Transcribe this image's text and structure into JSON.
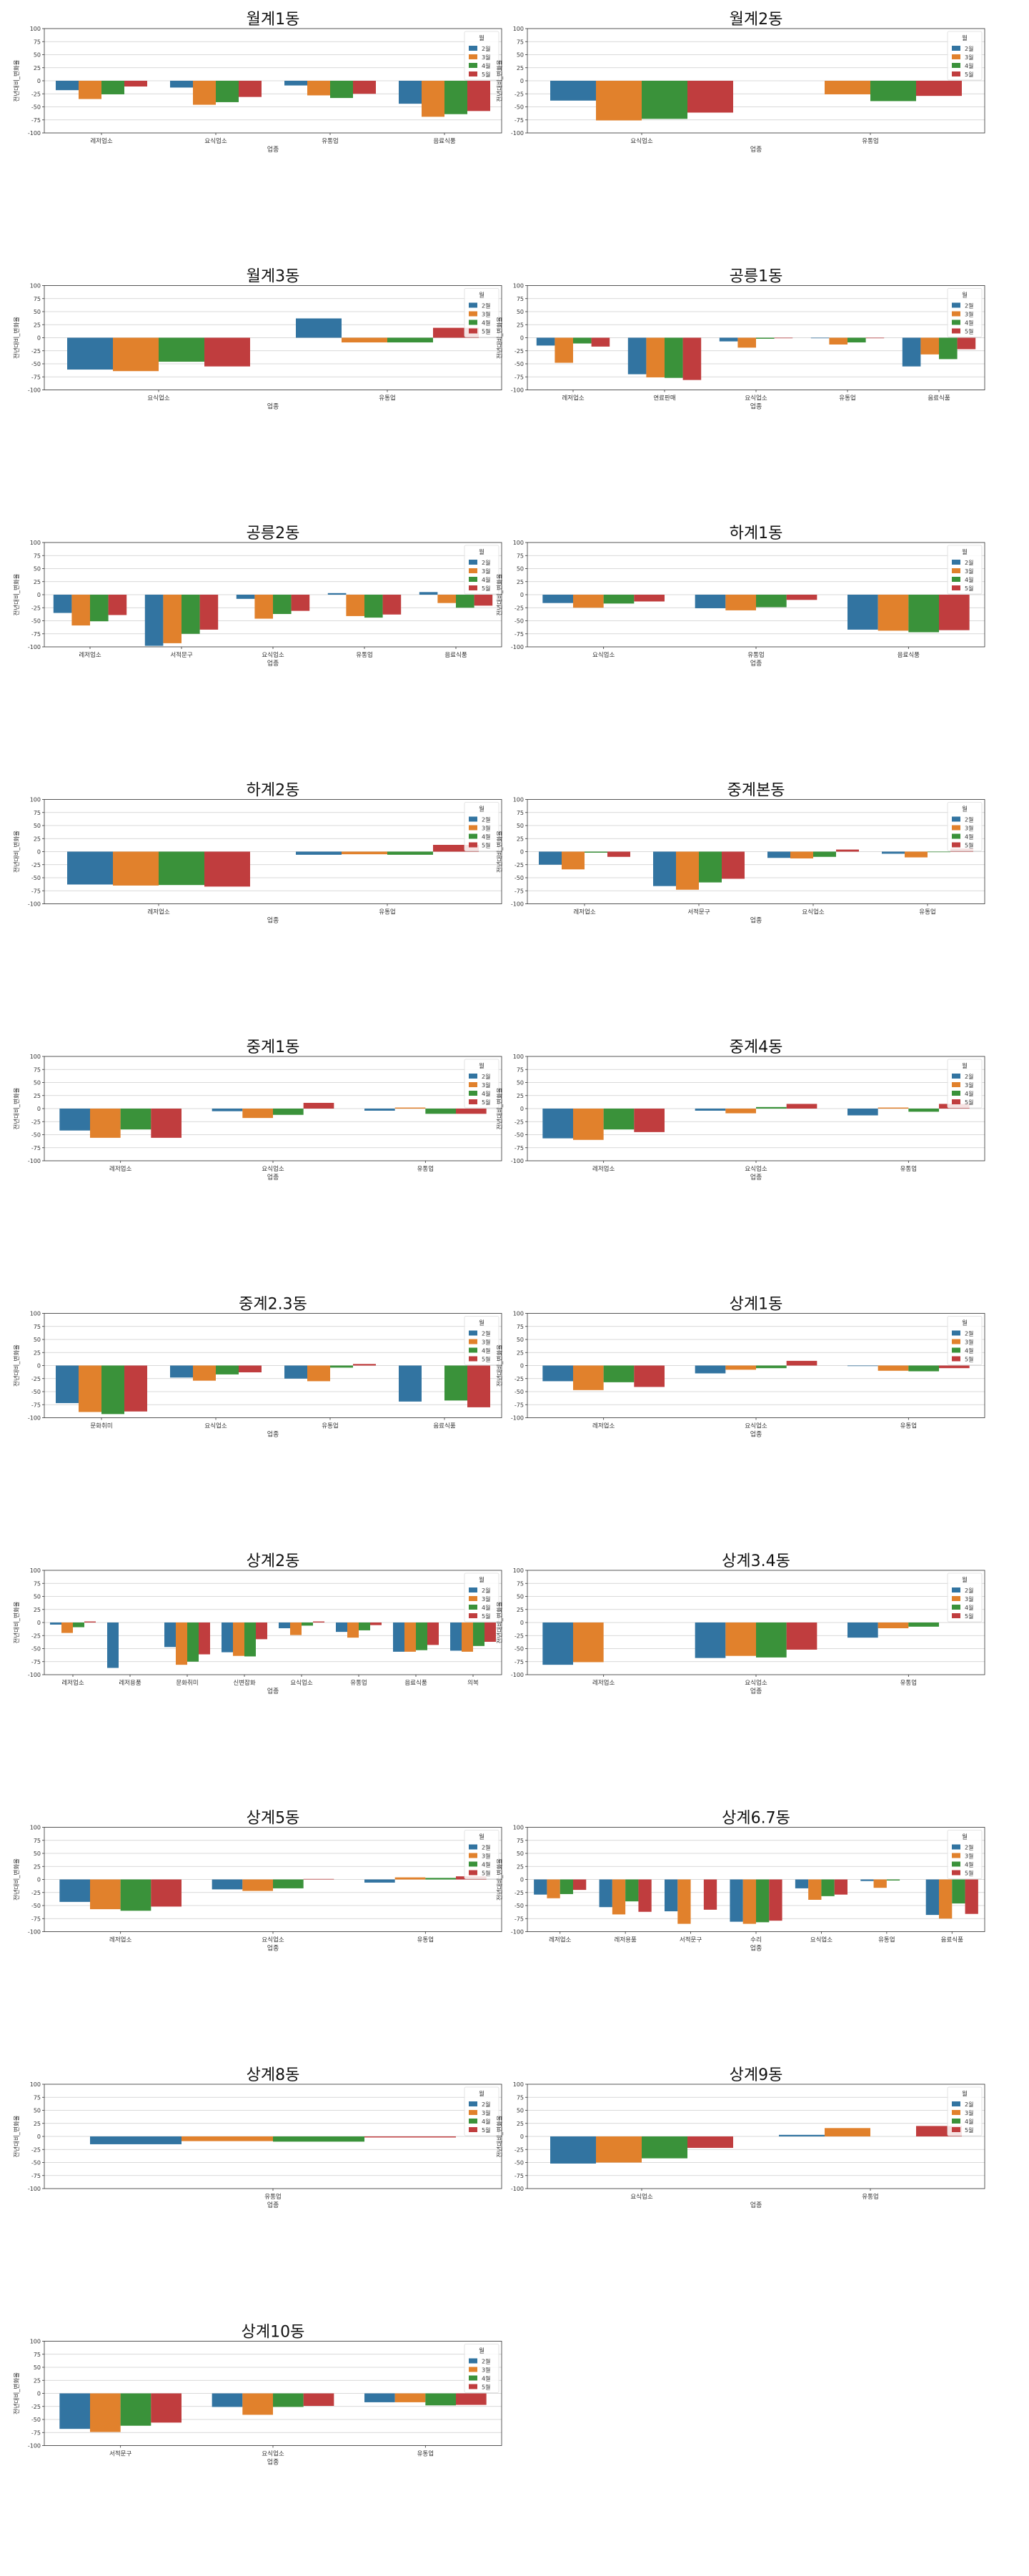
{
  "colors": {
    "2월": "#3274a1",
    "3월": "#e1812c",
    "4월": "#3a923a",
    "5월": "#c03d3e"
  },
  "legend_title": "월",
  "months": [
    "2월",
    "3월",
    "4월",
    "5월"
  ],
  "chart_data": [
    {
      "type": "bar",
      "title": "월계1동",
      "xlabel": "업종",
      "ylabel": "전년대비_변화율",
      "ylim": [
        -100,
        100
      ],
      "yticks": [
        -100,
        -75,
        -50,
        -25,
        0,
        25,
        50,
        75,
        100
      ],
      "legend": "top-right",
      "grid": true,
      "categories": [
        "레저업소",
        "요식업소",
        "유통업",
        "음료식품"
      ],
      "series": [
        {
          "name": "2월",
          "values": [
            -18,
            -13,
            -9,
            -44
          ]
        },
        {
          "name": "3월",
          "values": [
            -35,
            -46,
            -28,
            -69
          ]
        },
        {
          "name": "4월",
          "values": [
            -26,
            -41,
            -33,
            -64
          ]
        },
        {
          "name": "5월",
          "values": [
            -11,
            -31,
            -25,
            -58
          ]
        }
      ]
    },
    {
      "type": "bar",
      "title": "월계2동",
      "xlabel": "업종",
      "ylabel": "전년대비_변화율",
      "ylim": [
        -100,
        100
      ],
      "yticks": [
        -100,
        -75,
        -50,
        -25,
        0,
        25,
        50,
        75,
        100
      ],
      "legend": "top-right",
      "grid": true,
      "categories": [
        "요식업소",
        "유통업"
      ],
      "series": [
        {
          "name": "2월",
          "values": [
            -38,
            0
          ]
        },
        {
          "name": "3월",
          "values": [
            -76,
            -26
          ]
        },
        {
          "name": "4월",
          "values": [
            -73,
            -39
          ]
        },
        {
          "name": "5월",
          "values": [
            -61,
            -29
          ]
        }
      ]
    },
    {
      "type": "bar",
      "title": "월계3동",
      "xlabel": "업종",
      "ylabel": "전년대비_변화율",
      "ylim": [
        -100,
        100
      ],
      "yticks": [
        -100,
        -75,
        -50,
        -25,
        0,
        25,
        50,
        75,
        100
      ],
      "legend": "top-right",
      "grid": true,
      "categories": [
        "요식업소",
        "유통업"
      ],
      "series": [
        {
          "name": "2월",
          "values": [
            -61,
            37
          ]
        },
        {
          "name": "3월",
          "values": [
            -64,
            -9
          ]
        },
        {
          "name": "4월",
          "values": [
            -46,
            -9
          ]
        },
        {
          "name": "5월",
          "values": [
            -55,
            19
          ]
        }
      ]
    },
    {
      "type": "bar",
      "title": "공릉1동",
      "xlabel": "업종",
      "ylabel": "전년대비_변화율",
      "ylim": [
        -100,
        100
      ],
      "yticks": [
        -100,
        -75,
        -50,
        -25,
        0,
        25,
        50,
        75,
        100
      ],
      "legend": "top-right",
      "grid": true,
      "categories": [
        "레저업소",
        "연료판매",
        "요식업소",
        "유통업",
        "음료식품"
      ],
      "series": [
        {
          "name": "2월",
          "values": [
            -15,
            -70,
            -7,
            -1,
            -55
          ]
        },
        {
          "name": "3월",
          "values": [
            -48,
            -76,
            -19,
            -13,
            -32
          ]
        },
        {
          "name": "4월",
          "values": [
            -11,
            -77,
            -2,
            -9,
            -41
          ]
        },
        {
          "name": "5월",
          "values": [
            -17,
            -81,
            -1,
            -1,
            -22
          ]
        }
      ]
    },
    {
      "type": "bar",
      "title": "공릉2동",
      "xlabel": "업종",
      "ylabel": "전년대비_변화율",
      "ylim": [
        -100,
        100
      ],
      "yticks": [
        -100,
        -75,
        -50,
        -25,
        0,
        25,
        50,
        75,
        100
      ],
      "legend": "top-right",
      "grid": true,
      "categories": [
        "레저업소",
        "서적문구",
        "요식업소",
        "유통업",
        "음료식품"
      ],
      "series": [
        {
          "name": "2월",
          "values": [
            -35,
            -98,
            -8,
            3,
            5
          ]
        },
        {
          "name": "3월",
          "values": [
            -59,
            -93,
            -46,
            -41,
            -16
          ]
        },
        {
          "name": "4월",
          "values": [
            -51,
            -75,
            -37,
            -44,
            -25
          ]
        },
        {
          "name": "5월",
          "values": [
            -39,
            -67,
            -31,
            -38,
            -21
          ]
        }
      ]
    },
    {
      "type": "bar",
      "title": "하계1동",
      "xlabel": "업종",
      "ylabel": "전년대비_변화율",
      "ylim": [
        -100,
        100
      ],
      "yticks": [
        -100,
        -75,
        -50,
        -25,
        0,
        25,
        50,
        75,
        100
      ],
      "legend": "top-right",
      "grid": true,
      "categories": [
        "요식업소",
        "유통업",
        "음료식품"
      ],
      "series": [
        {
          "name": "2월",
          "values": [
            -16,
            -26,
            -67
          ]
        },
        {
          "name": "3월",
          "values": [
            -25,
            -30,
            -69
          ]
        },
        {
          "name": "4월",
          "values": [
            -17,
            -24,
            -72
          ]
        },
        {
          "name": "5월",
          "values": [
            -13,
            -10,
            -68
          ]
        }
      ]
    },
    {
      "type": "bar",
      "title": "하계2동",
      "xlabel": "업종",
      "ylabel": "전년대비_변화율",
      "ylim": [
        -100,
        100
      ],
      "yticks": [
        -100,
        -75,
        -50,
        -25,
        0,
        25,
        50,
        75,
        100
      ],
      "legend": "top-right",
      "grid": true,
      "categories": [
        "레저업소",
        "유통업"
      ],
      "series": [
        {
          "name": "2월",
          "values": [
            -63,
            -6
          ]
        },
        {
          "name": "3월",
          "values": [
            -65,
            -5
          ]
        },
        {
          "name": "4월",
          "values": [
            -64,
            -6
          ]
        },
        {
          "name": "5월",
          "values": [
            -67,
            13
          ]
        }
      ]
    },
    {
      "type": "bar",
      "title": "중계본동",
      "xlabel": "업종",
      "ylabel": "전년대비_변화율",
      "ylim": [
        -100,
        100
      ],
      "yticks": [
        -100,
        -75,
        -50,
        -25,
        0,
        25,
        50,
        75,
        100
      ],
      "legend": "top-right",
      "grid": true,
      "categories": [
        "레저업소",
        "서적문구",
        "요식업소",
        "유통업"
      ],
      "series": [
        {
          "name": "2월",
          "values": [
            -25,
            -66,
            -12,
            -4
          ]
        },
        {
          "name": "3월",
          "values": [
            -34,
            -73,
            -13,
            -11
          ]
        },
        {
          "name": "4월",
          "values": [
            -2,
            -59,
            -10,
            -1
          ]
        },
        {
          "name": "5월",
          "values": [
            -10,
            -52,
            4,
            6
          ]
        }
      ]
    },
    {
      "type": "bar",
      "title": "중계1동",
      "xlabel": "업종",
      "ylabel": "전년대비_변화율",
      "ylim": [
        -100,
        100
      ],
      "yticks": [
        -100,
        -75,
        -50,
        -25,
        0,
        25,
        50,
        75,
        100
      ],
      "legend": "top-right",
      "grid": true,
      "categories": [
        "레저업소",
        "요식업소",
        "유통업"
      ],
      "series": [
        {
          "name": "2월",
          "values": [
            -42,
            -5,
            -4
          ]
        },
        {
          "name": "3월",
          "values": [
            -56,
            -18,
            2
          ]
        },
        {
          "name": "4월",
          "values": [
            -40,
            -12,
            -10
          ]
        },
        {
          "name": "5월",
          "values": [
            -56,
            11,
            -10
          ]
        }
      ]
    },
    {
      "type": "bar",
      "title": "중계4동",
      "xlabel": "업종",
      "ylabel": "전년대비_변화율",
      "ylim": [
        -100,
        100
      ],
      "yticks": [
        -100,
        -75,
        -50,
        -25,
        0,
        25,
        50,
        75,
        100
      ],
      "legend": "top-right",
      "grid": true,
      "categories": [
        "레저업소",
        "요식업소",
        "유통업"
      ],
      "series": [
        {
          "name": "2월",
          "values": [
            -57,
            -4,
            -13
          ]
        },
        {
          "name": "3월",
          "values": [
            -60,
            -9,
            2
          ]
        },
        {
          "name": "4월",
          "values": [
            -40,
            3,
            -6
          ]
        },
        {
          "name": "5월",
          "values": [
            -45,
            9,
            9
          ]
        }
      ]
    },
    {
      "type": "bar",
      "title": "중계2.3동",
      "xlabel": "업종",
      "ylabel": "전년대비_변화율",
      "ylim": [
        -100,
        100
      ],
      "yticks": [
        -100,
        -75,
        -50,
        -25,
        0,
        25,
        50,
        75,
        100
      ],
      "legend": "top-right",
      "grid": true,
      "categories": [
        "문화취미",
        "요식업소",
        "유통업",
        "음료식품"
      ],
      "series": [
        {
          "name": "2월",
          "values": [
            -72,
            -23,
            -25,
            -69
          ]
        },
        {
          "name": "3월",
          "values": [
            -89,
            -29,
            -30,
            0
          ]
        },
        {
          "name": "4월",
          "values": [
            -93,
            -17,
            -4,
            -67
          ]
        },
        {
          "name": "5월",
          "values": [
            -88,
            -13,
            3,
            -80
          ]
        }
      ]
    },
    {
      "type": "bar",
      "title": "상계1동",
      "xlabel": "업종",
      "ylabel": "전년대비_변화율",
      "ylim": [
        -100,
        100
      ],
      "yticks": [
        -100,
        -75,
        -50,
        -25,
        0,
        25,
        50,
        75,
        100
      ],
      "legend": "top-right",
      "grid": true,
      "categories": [
        "레저업소",
        "요식업소",
        "유통업"
      ],
      "series": [
        {
          "name": "2월",
          "values": [
            -30,
            -15,
            -1
          ]
        },
        {
          "name": "3월",
          "values": [
            -47,
            -8,
            -10
          ]
        },
        {
          "name": "4월",
          "values": [
            -32,
            -5,
            -11
          ]
        },
        {
          "name": "5월",
          "values": [
            -41,
            9,
            -5
          ]
        }
      ]
    },
    {
      "type": "bar",
      "title": "상계2동",
      "xlabel": "업종",
      "ylabel": "전년대비_변화율",
      "ylim": [
        -100,
        100
      ],
      "yticks": [
        -100,
        -75,
        -50,
        -25,
        0,
        25,
        50,
        75,
        100
      ],
      "legend": "top-right",
      "grid": true,
      "categories": [
        "레저업소",
        "레저용품",
        "문화취미",
        "신변잡화",
        "요식업소",
        "유통업",
        "음료식품",
        "의복"
      ],
      "series": [
        {
          "name": "2월",
          "values": [
            -4,
            -87,
            -47,
            -57,
            -11,
            -18,
            -56,
            -54
          ]
        },
        {
          "name": "3월",
          "values": [
            -20,
            0,
            -81,
            -64,
            -24,
            -29,
            -56,
            -56
          ]
        },
        {
          "name": "4월",
          "values": [
            -9,
            0,
            -75,
            -65,
            -6,
            -15,
            -53,
            -45
          ]
        },
        {
          "name": "5월",
          "values": [
            2,
            0,
            -61,
            -32,
            2,
            -5,
            -43,
            -37
          ]
        }
      ]
    },
    {
      "type": "bar",
      "title": "상계3.4동",
      "xlabel": "업종",
      "ylabel": "전년대비_변화율",
      "ylim": [
        -100,
        100
      ],
      "yticks": [
        -100,
        -75,
        -50,
        -25,
        0,
        25,
        50,
        75,
        100
      ],
      "legend": "top-right",
      "grid": true,
      "categories": [
        "레저업소",
        "요식업소",
        "유통업"
      ],
      "series": [
        {
          "name": "2월",
          "values": [
            -81,
            -68,
            -29
          ]
        },
        {
          "name": "3월",
          "values": [
            -76,
            -64,
            -11
          ]
        },
        {
          "name": "4월",
          "values": [
            0,
            -67,
            -8
          ]
        },
        {
          "name": "5월",
          "values": [
            0,
            -52,
            0
          ]
        }
      ]
    },
    {
      "type": "bar",
      "title": "상계5동",
      "xlabel": "업종",
      "ylabel": "전년대비_변화율",
      "ylim": [
        -100,
        100
      ],
      "yticks": [
        -100,
        -75,
        -50,
        -25,
        0,
        25,
        50,
        75,
        100
      ],
      "legend": "top-right",
      "grid": true,
      "categories": [
        "레저업소",
        "요식업소",
        "유통업"
      ],
      "series": [
        {
          "name": "2월",
          "values": [
            -43,
            -19,
            -6
          ]
        },
        {
          "name": "3월",
          "values": [
            -57,
            -22,
            4
          ]
        },
        {
          "name": "4월",
          "values": [
            -60,
            -17,
            3
          ]
        },
        {
          "name": "5월",
          "values": [
            -52,
            1,
            6
          ]
        }
      ]
    },
    {
      "type": "bar",
      "title": "상계6.7동",
      "xlabel": "업종",
      "ylabel": "전년대비_변화율",
      "ylim": [
        -100,
        100
      ],
      "yticks": [
        -100,
        -75,
        -50,
        -25,
        0,
        25,
        50,
        75,
        100
      ],
      "legend": "top-right",
      "grid": true,
      "categories": [
        "레저업소",
        "레저용품",
        "서적문구",
        "수리",
        "요식업소",
        "유통업",
        "음료식품"
      ],
      "series": [
        {
          "name": "2월",
          "values": [
            -29,
            -53,
            -61,
            -81,
            -17,
            -3,
            -68
          ]
        },
        {
          "name": "3월",
          "values": [
            -36,
            -67,
            -85,
            -85,
            -39,
            -16,
            -75
          ]
        },
        {
          "name": "4월",
          "values": [
            -28,
            -42,
            0,
            -82,
            -32,
            -2,
            -46
          ]
        },
        {
          "name": "5월",
          "values": [
            -20,
            -62,
            -58,
            -79,
            -29,
            0,
            -66
          ]
        }
      ]
    },
    {
      "type": "bar",
      "title": "상계8동",
      "xlabel": "업종",
      "ylabel": "전년대비_변화율",
      "ylim": [
        -100,
        100
      ],
      "yticks": [
        -100,
        -75,
        -50,
        -25,
        0,
        25,
        50,
        75,
        100
      ],
      "legend": "top-right",
      "grid": true,
      "categories": [
        "유통업"
      ],
      "series": [
        {
          "name": "2월",
          "values": [
            -15
          ]
        },
        {
          "name": "3월",
          "values": [
            -9
          ]
        },
        {
          "name": "4월",
          "values": [
            -10
          ]
        },
        {
          "name": "5월",
          "values": [
            -2
          ]
        }
      ]
    },
    {
      "type": "bar",
      "title": "상계9동",
      "xlabel": "업종",
      "ylabel": "전년대비_변화율",
      "ylim": [
        -100,
        100
      ],
      "yticks": [
        -100,
        -75,
        -50,
        -25,
        0,
        25,
        50,
        75,
        100
      ],
      "legend": "top-right",
      "grid": true,
      "categories": [
        "요식업소",
        "유통업"
      ],
      "series": [
        {
          "name": "2월",
          "values": [
            -52,
            3
          ]
        },
        {
          "name": "3월",
          "values": [
            -50,
            16
          ]
        },
        {
          "name": "4월",
          "values": [
            -42,
            0
          ]
        },
        {
          "name": "5월",
          "values": [
            -22,
            20
          ]
        }
      ]
    },
    {
      "type": "bar",
      "title": "상계10동",
      "xlabel": "업종",
      "ylabel": "전년대비_변화율",
      "ylim": [
        -100,
        100
      ],
      "yticks": [
        -100,
        -75,
        -50,
        -25,
        0,
        25,
        50,
        75,
        100
      ],
      "legend": "top-right",
      "grid": true,
      "categories": [
        "서적문구",
        "요식업소",
        "유통업"
      ],
      "series": [
        {
          "name": "2월",
          "values": [
            -68,
            -26,
            -17
          ]
        },
        {
          "name": "3월",
          "values": [
            -74,
            -41,
            -17
          ]
        },
        {
          "name": "4월",
          "values": [
            -62,
            -26,
            -23
          ]
        },
        {
          "name": "5월",
          "values": [
            -56,
            -24,
            -22
          ]
        }
      ]
    }
  ]
}
